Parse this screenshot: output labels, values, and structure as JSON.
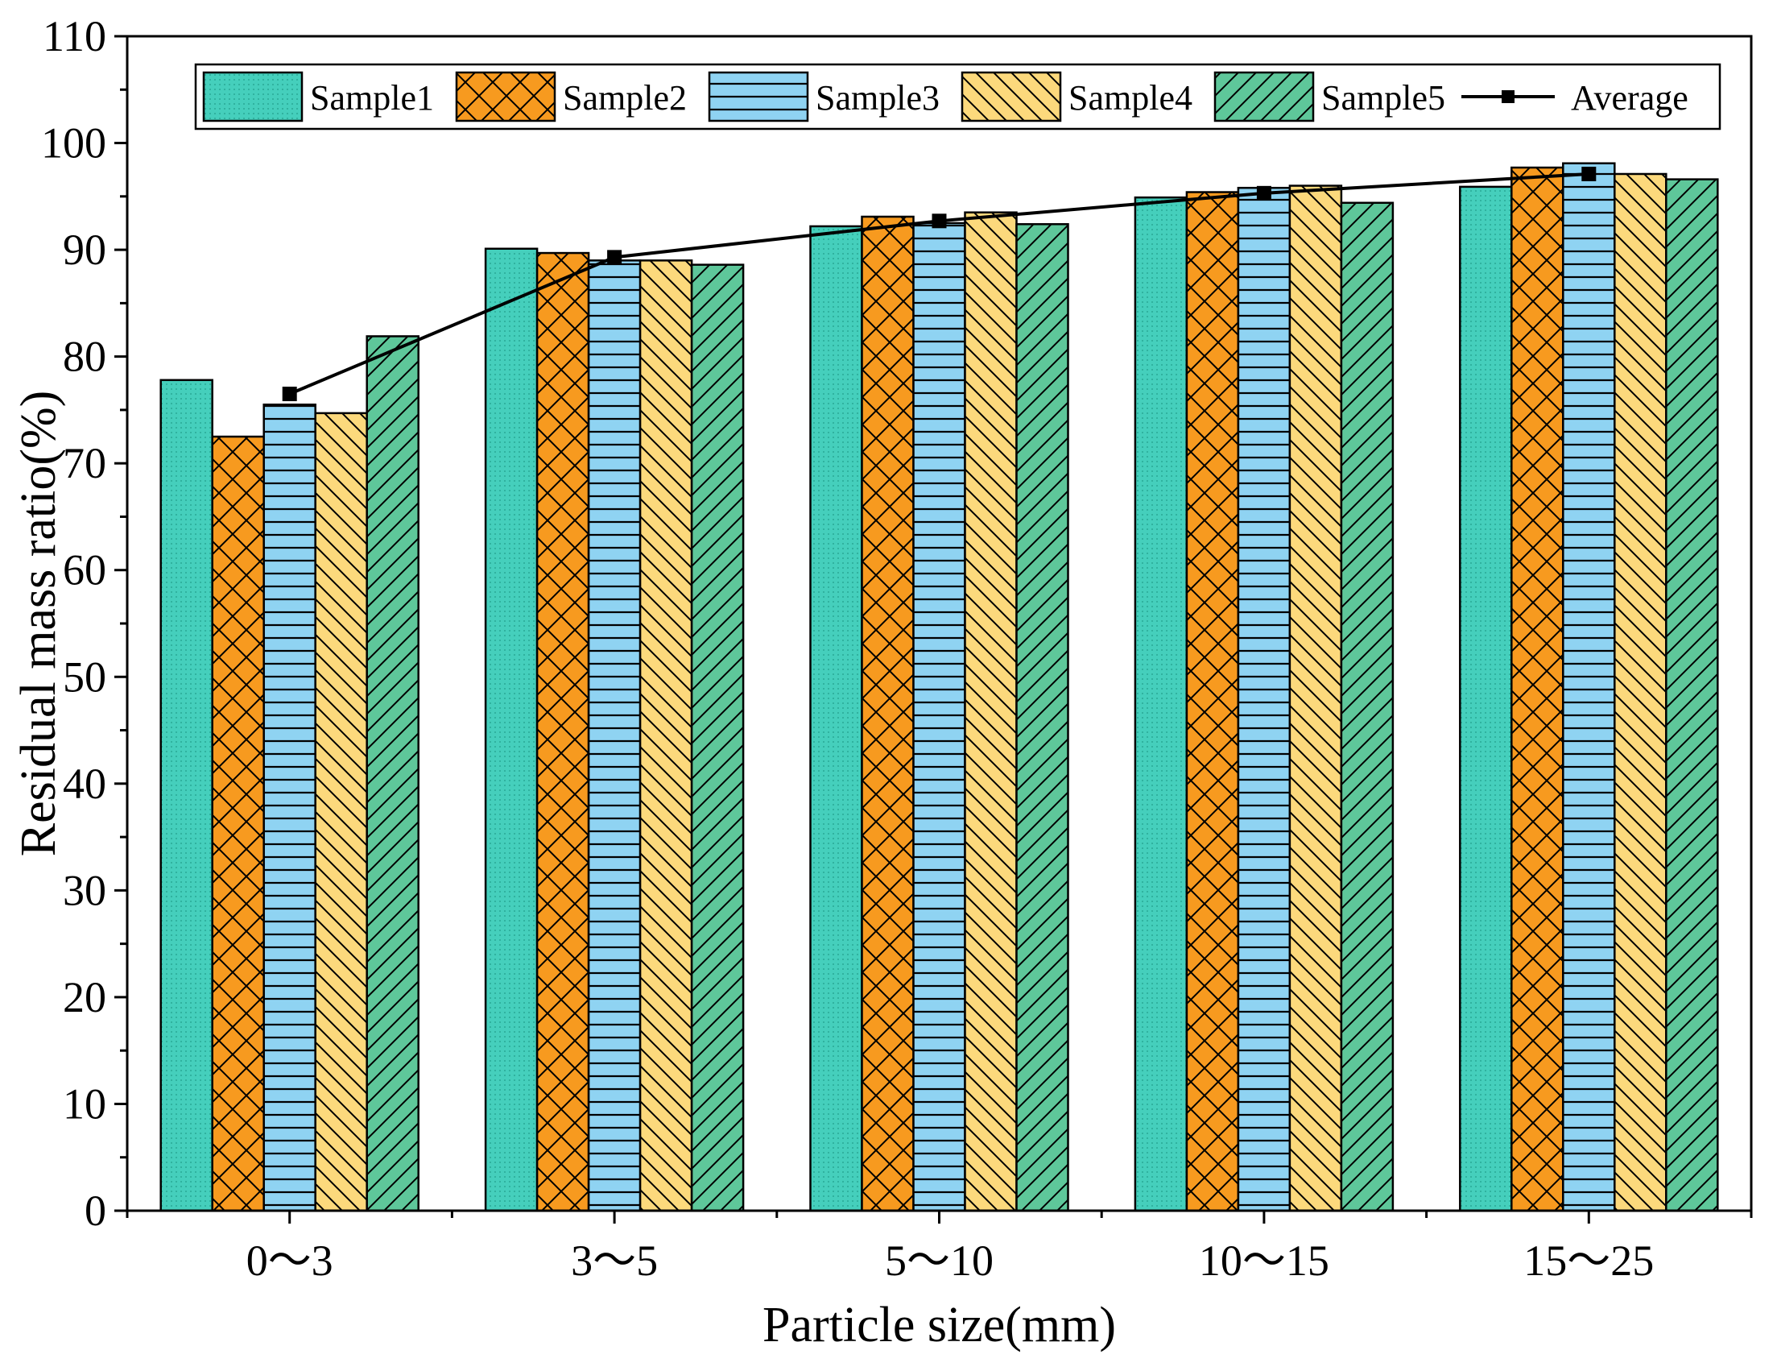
{
  "chart_data": {
    "type": "bar",
    "title": "",
    "xlabel": "Particle size(mm)",
    "ylabel": "Residual mass ratio(%)",
    "ylim": [
      0,
      110
    ],
    "yticks": [
      "0",
      "10",
      "20",
      "30",
      "40",
      "50",
      "60",
      "70",
      "80",
      "90",
      "100",
      "110"
    ],
    "categories": [
      "0～3",
      "3～5",
      "5～10",
      "10～15",
      "15～25"
    ],
    "grid": false,
    "legend": "top, inside plot area",
    "series": [
      {
        "name": "Sample1",
        "color": "#45cfbc",
        "pattern": "dots",
        "values": [
          77.8,
          90.1,
          92.2,
          94.9,
          95.9
        ]
      },
      {
        "name": "Sample2",
        "color": "#f79a1f",
        "pattern": "crosshatch",
        "values": [
          72.5,
          89.7,
          93.1,
          95.4,
          97.7
        ]
      },
      {
        "name": "Sample3",
        "color": "#8fd3f2",
        "pattern": "horizontal",
        "values": [
          75.5,
          89.0,
          92.5,
          95.8,
          98.1
        ]
      },
      {
        "name": "Sample4",
        "color": "#fcd97c",
        "pattern": "diagonal-down",
        "values": [
          74.7,
          89.0,
          93.5,
          96.0,
          97.1
        ]
      },
      {
        "name": "Sample5",
        "color": "#5ec79a",
        "pattern": "diagonal-up",
        "values": [
          81.9,
          88.6,
          92.4,
          94.4,
          96.6
        ]
      }
    ],
    "line_series": {
      "name": "Average",
      "color": "#000000",
      "marker": "square",
      "values": [
        76.5,
        89.3,
        92.7,
        95.3,
        97.1
      ]
    }
  }
}
